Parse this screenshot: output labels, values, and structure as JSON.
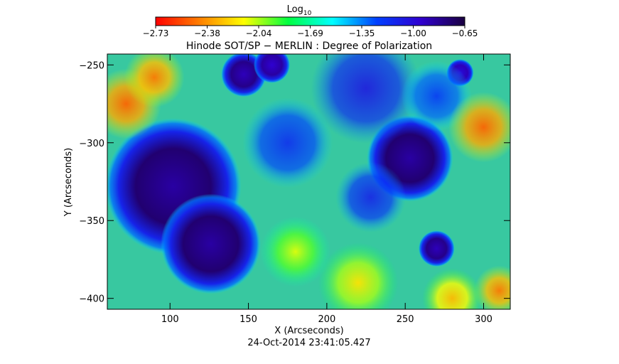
{
  "chart_data": {
    "type": "heatmap",
    "title": "Hinode SOT/SP − MERLIN : Degree of Polarization",
    "xlabel": "X (Arcseconds)",
    "ylabel": "Y (Arcseconds)",
    "xlim": [
      60,
      317
    ],
    "ylim": [
      -407,
      -243
    ],
    "x_ticks": [
      100,
      150,
      200,
      250,
      300
    ],
    "y_ticks": [
      -250,
      -300,
      -350,
      -400
    ],
    "timestamp": "24-Oct-2014 23:41:05.427",
    "colorbar": {
      "label": "Log",
      "label_sub": "10",
      "range": [
        -2.73,
        -0.65
      ],
      "ticks": [
        "-2.73",
        "-2.38",
        "-2.04",
        "-1.69",
        "-1.35",
        "-1.00",
        "-0.65"
      ],
      "colormap": [
        "#ff0000",
        "#ff8000",
        "#ffff00",
        "#00ff40",
        "#00ffff",
        "#0040ff",
        "#3000d0",
        "#1a0040"
      ]
    },
    "features": [
      {
        "kind": "sunspot",
        "x": 102,
        "y": -328,
        "r": 30,
        "log_value": -0.75
      },
      {
        "kind": "sunspot",
        "x": 126,
        "y": -365,
        "r": 22,
        "log_value": -0.75
      },
      {
        "kind": "sunspot",
        "x": 253,
        "y": -310,
        "r": 19,
        "log_value": -0.75
      },
      {
        "kind": "sunspot",
        "x": 147,
        "y": -256,
        "r": 10,
        "log_value": -0.8
      },
      {
        "kind": "sunspot",
        "x": 165,
        "y": -250,
        "r": 8,
        "log_value": -0.85
      },
      {
        "kind": "sunspot",
        "x": 270,
        "y": -368,
        "r": 8,
        "log_value": -0.8
      },
      {
        "kind": "sunspot",
        "x": 285,
        "y": -255,
        "r": 6,
        "log_value": -0.9
      },
      {
        "kind": "plage",
        "x": 225,
        "y": -265,
        "r": 22,
        "log_value": -1.05
      },
      {
        "kind": "plage",
        "x": 175,
        "y": -300,
        "r": 18,
        "log_value": -1.15
      },
      {
        "kind": "plage",
        "x": 228,
        "y": -335,
        "r": 14,
        "log_value": -1.1
      },
      {
        "kind": "plage",
        "x": 270,
        "y": -270,
        "r": 14,
        "log_value": -1.2
      },
      {
        "kind": "quiet",
        "x": 72,
        "y": -275,
        "r": 14,
        "log_value": -2.5
      },
      {
        "kind": "quiet",
        "x": 90,
        "y": -258,
        "r": 12,
        "log_value": -2.45
      },
      {
        "kind": "quiet",
        "x": 300,
        "y": -290,
        "r": 14,
        "log_value": -2.5
      },
      {
        "kind": "quiet",
        "x": 310,
        "y": -395,
        "r": 10,
        "log_value": -2.45
      },
      {
        "kind": "quiet",
        "x": 220,
        "y": -390,
        "r": 16,
        "log_value": -2.2
      },
      {
        "kind": "quiet",
        "x": 180,
        "y": -370,
        "r": 14,
        "log_value": -2.1
      },
      {
        "kind": "quiet",
        "x": 280,
        "y": -400,
        "r": 12,
        "log_value": -2.3
      }
    ]
  }
}
